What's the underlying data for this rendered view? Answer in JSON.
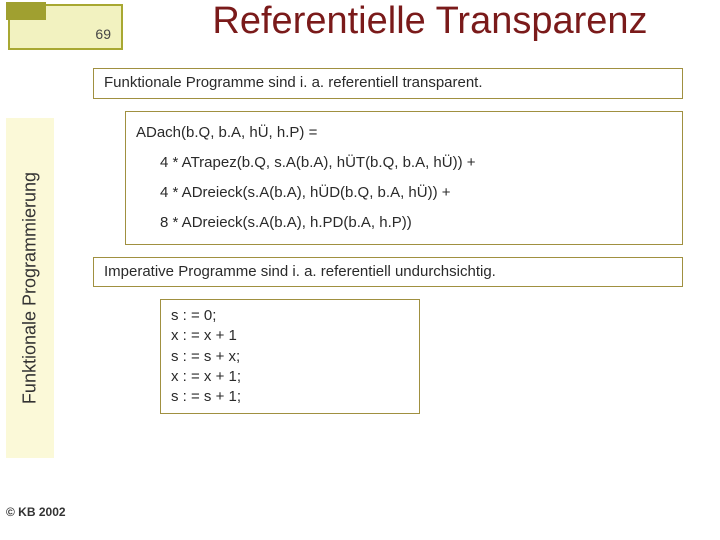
{
  "page": {
    "number": "69",
    "title": "Referentielle Transparenz",
    "vlabel": "Funktionale Programmierung",
    "footer": "© KB 2002"
  },
  "colors": {
    "title_color": "#7a1a1a",
    "box_border": "#a09040",
    "box_shadow": "#cfcf88",
    "vlabel_bg": "#fbf9d8",
    "page_block_bg": "#f2f2c0",
    "page_block_border": "#a8a832",
    "page_block_corner": "#a0a030",
    "text_color": "#2a2a2a",
    "background": "#ffffff"
  },
  "typography": {
    "title_fontsize": 38,
    "body_fontsize": 15,
    "vlabel_fontsize": 18,
    "footer_fontsize": 12
  },
  "boxes": {
    "intro": "Funktionale Programme sind i. a. referentiell transparent.",
    "eq": {
      "line1": "ADach(b.Q, b.A, hÜ, h.P) =",
      "line2": "4 * ATrapez(b.Q, s.A(b.A), hÜT(b.Q, b.A, hÜ)) +",
      "line3": "4 * ADreieck(s.A(b.A), hÜD(b.Q, b.A, hÜ)) +",
      "line4": "8 * ADreieck(s.A(b.A), h.PD(b.A, h.P))"
    },
    "mid": "Imperative Programme sind i. a. referentiell undurchsichtig.",
    "code": {
      "l1": "s : = 0;",
      "l2": "x : = x + 1",
      "l3": "s : = s + x;",
      "l4": "x : = x + 1;",
      "l5": "s : = s + 1;"
    }
  }
}
